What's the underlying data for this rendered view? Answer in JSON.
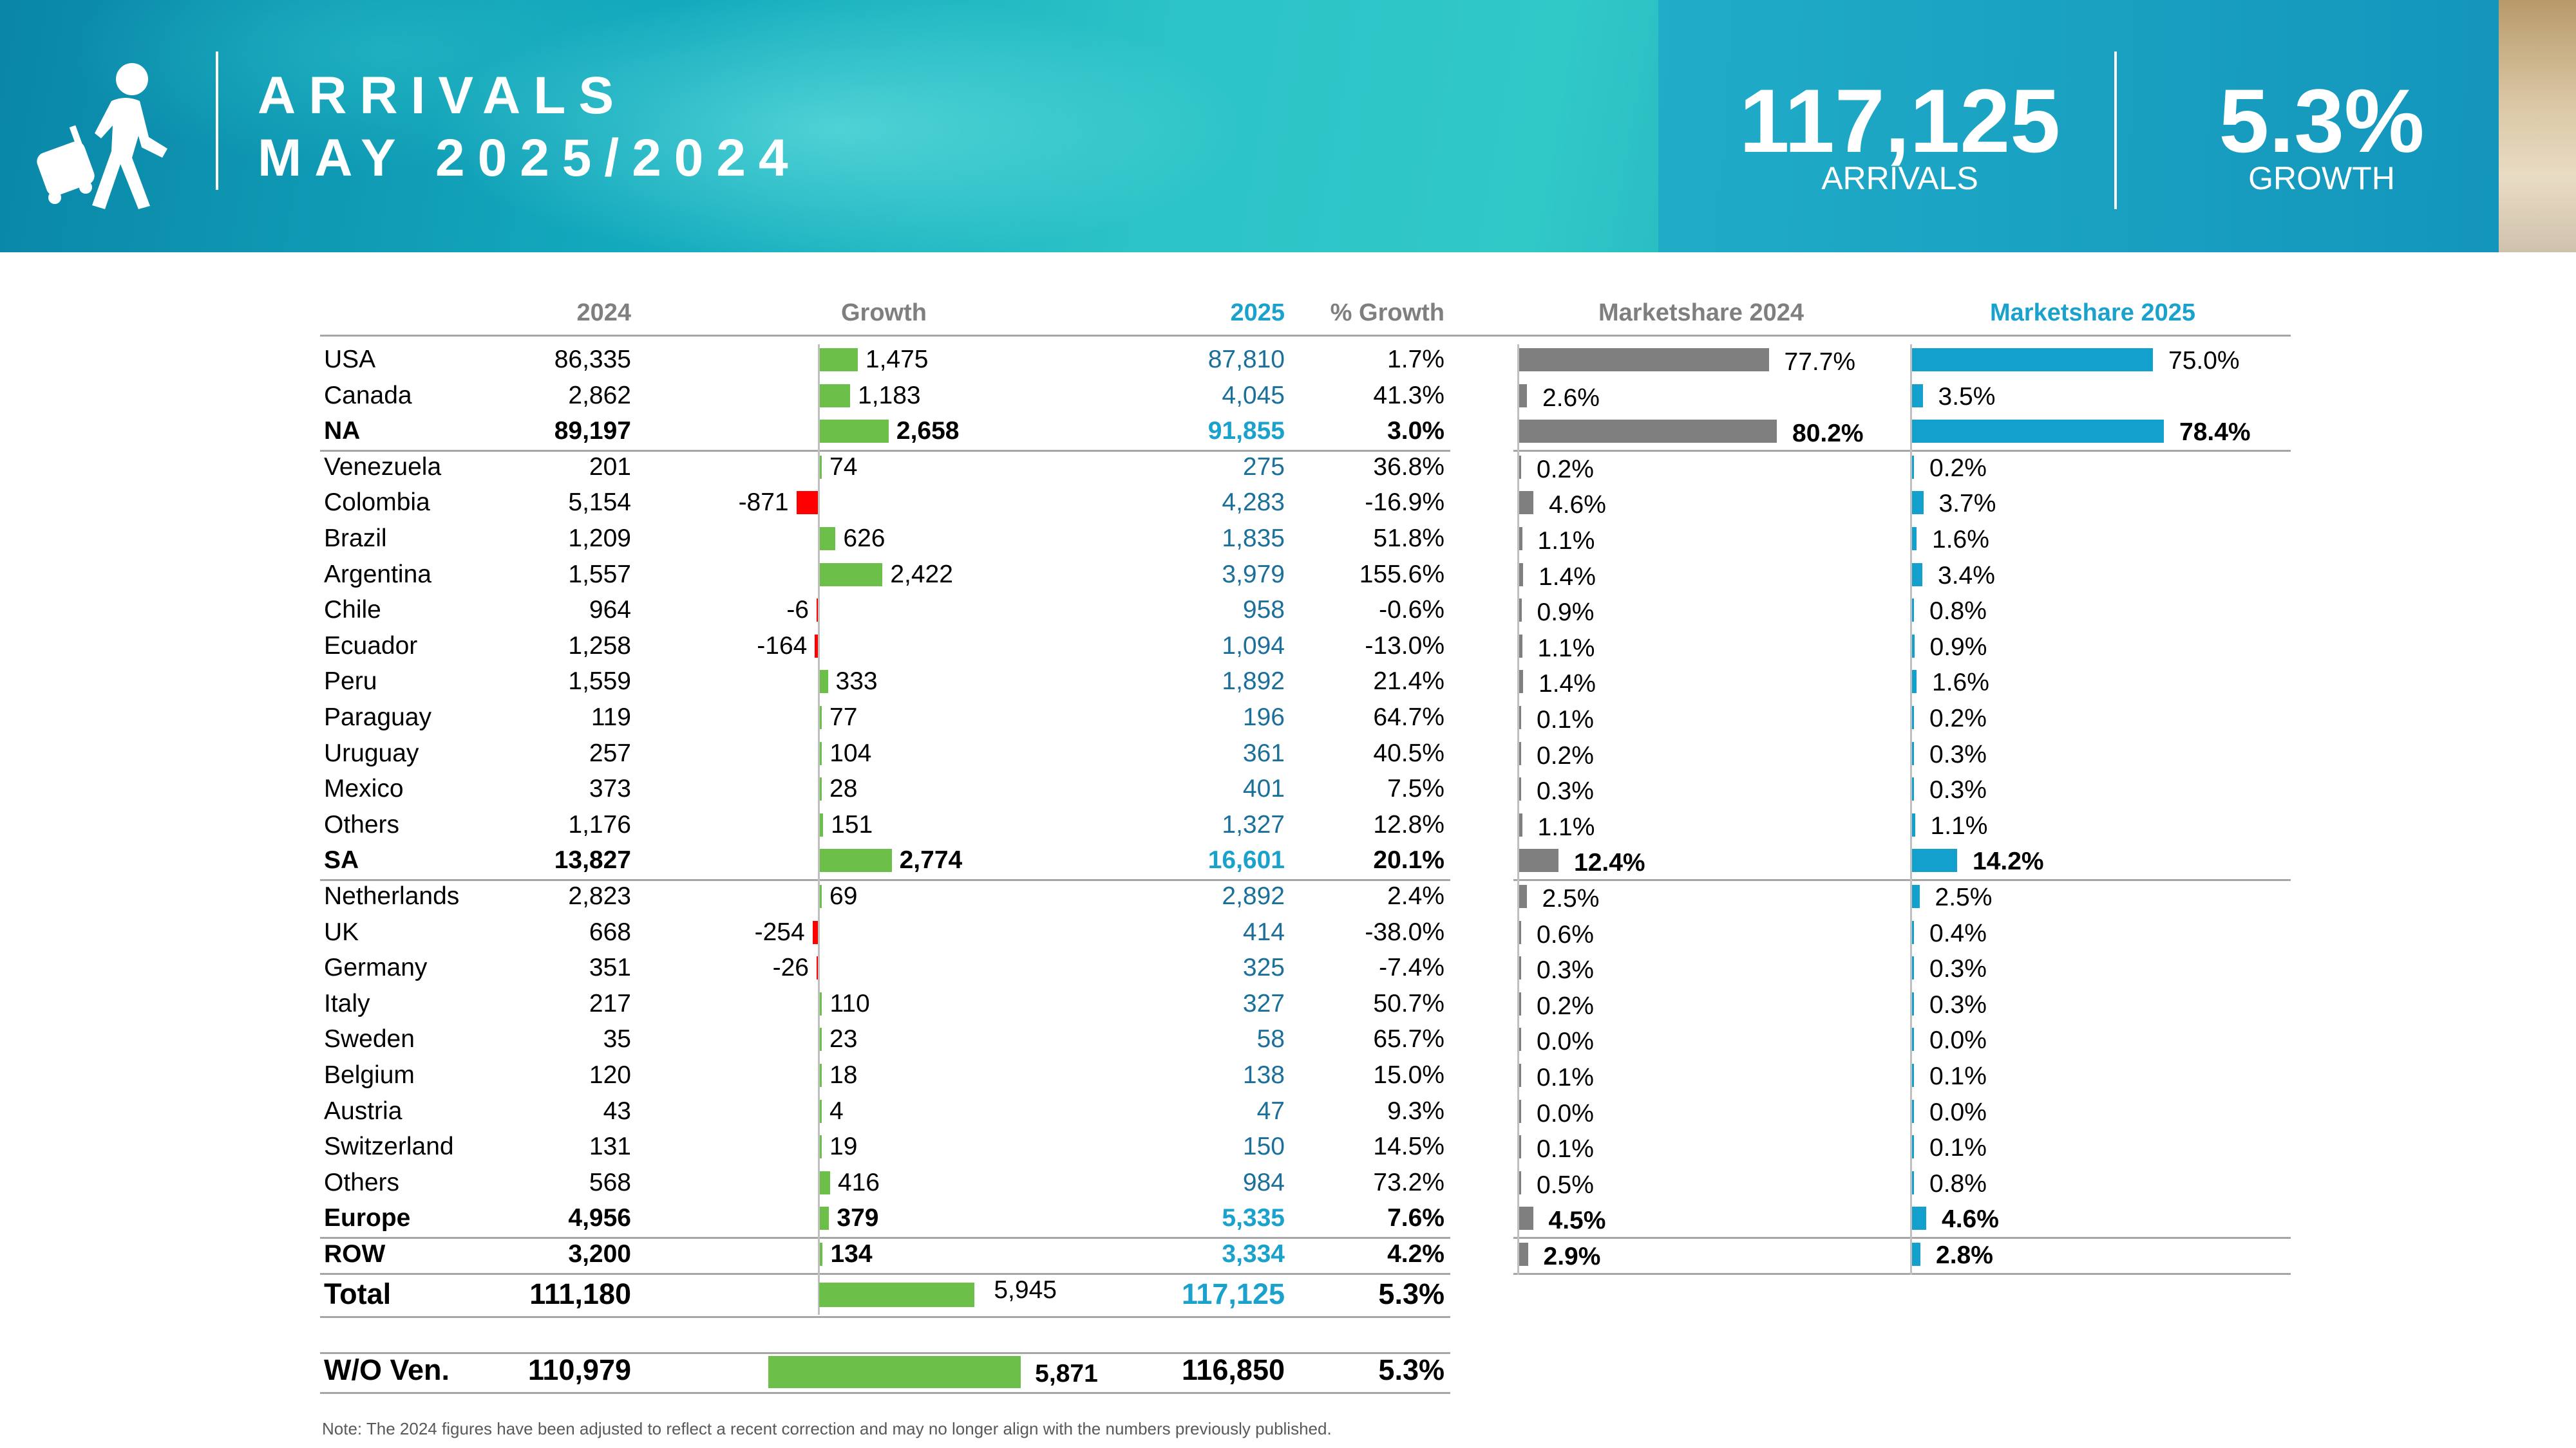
{
  "header": {
    "title_line1": "ARRIVALS",
    "title_line2": "MAY 2025/2024",
    "arrivals_value": "117,125",
    "arrivals_label": "ARRIVALS",
    "growth_value": "5.3%",
    "growth_label": "GROWTH",
    "icon": "traveler-with-luggage-icon"
  },
  "columns": {
    "y2024": "2024",
    "growth": "Growth",
    "y2025": "2025",
    "pct_growth": "% Growth",
    "share2024": "Marketshare 2024",
    "share2025": "Marketshare 2025"
  },
  "colors": {
    "growth_positive": "#6cc04a",
    "growth_negative": "#ff0000",
    "share_2024": "#7f7f7f",
    "share_2025": "#14a0cc",
    "banner": "#13a9bd"
  },
  "rows": [
    {
      "name": "USA",
      "y2024": "86,335",
      "growth": "1,475",
      "growth_value": 1475,
      "y2025": "87,810",
      "pct": "1.7%",
      "share2024": "77.7%",
      "share2024_value": 77.7,
      "share2025": "75.0%",
      "share2025_value": 75.0
    },
    {
      "name": "Canada",
      "y2024": "2,862",
      "growth": "1,183",
      "growth_value": 1183,
      "y2025": "4,045",
      "pct": "41.3%",
      "share2024": "2.6%",
      "share2024_value": 2.6,
      "share2025": "3.5%",
      "share2025_value": 3.5
    },
    {
      "name": "NA",
      "y2024": "89,197",
      "growth": "2,658",
      "growth_value": 2658,
      "y2025": "91,855",
      "pct": "3.0%",
      "share2024": "80.2%",
      "share2024_value": 80.2,
      "share2025": "78.4%",
      "share2025_value": 78.4,
      "subtotal": true
    },
    {
      "name": "Venezuela",
      "y2024": "201",
      "growth": "74",
      "growth_value": 74,
      "y2025": "275",
      "pct": "36.8%",
      "share2024": "0.2%",
      "share2024_value": 0.2,
      "share2025": "0.2%",
      "share2025_value": 0.2
    },
    {
      "name": "Colombia",
      "y2024": "5,154",
      "growth": "-871",
      "growth_value": -871,
      "y2025": "4,283",
      "pct": "-16.9%",
      "share2024": "4.6%",
      "share2024_value": 4.6,
      "share2025": "3.7%",
      "share2025_value": 3.7
    },
    {
      "name": "Brazil",
      "y2024": "1,209",
      "growth": "626",
      "growth_value": 626,
      "y2025": "1,835",
      "pct": "51.8%",
      "share2024": "1.1%",
      "share2024_value": 1.1,
      "share2025": "1.6%",
      "share2025_value": 1.6
    },
    {
      "name": "Argentina",
      "y2024": "1,557",
      "growth": "2,422",
      "growth_value": 2422,
      "y2025": "3,979",
      "pct": "155.6%",
      "share2024": "1.4%",
      "share2024_value": 1.4,
      "share2025": "3.4%",
      "share2025_value": 3.4
    },
    {
      "name": "Chile",
      "y2024": "964",
      "growth": "-6",
      "growth_value": -6,
      "y2025": "958",
      "pct": "-0.6%",
      "share2024": "0.9%",
      "share2024_value": 0.9,
      "share2025": "0.8%",
      "share2025_value": 0.8
    },
    {
      "name": "Ecuador",
      "y2024": "1,258",
      "growth": "-164",
      "growth_value": -164,
      "y2025": "1,094",
      "pct": "-13.0%",
      "share2024": "1.1%",
      "share2024_value": 1.1,
      "share2025": "0.9%",
      "share2025_value": 0.9
    },
    {
      "name": "Peru",
      "y2024": "1,559",
      "growth": "333",
      "growth_value": 333,
      "y2025": "1,892",
      "pct": "21.4%",
      "share2024": "1.4%",
      "share2024_value": 1.4,
      "share2025": "1.6%",
      "share2025_value": 1.6
    },
    {
      "name": "Paraguay",
      "y2024": "119",
      "growth": "77",
      "growth_value": 77,
      "y2025": "196",
      "pct": "64.7%",
      "share2024": "0.1%",
      "share2024_value": 0.1,
      "share2025": "0.2%",
      "share2025_value": 0.2
    },
    {
      "name": "Uruguay",
      "y2024": "257",
      "growth": "104",
      "growth_value": 104,
      "y2025": "361",
      "pct": "40.5%",
      "share2024": "0.2%",
      "share2024_value": 0.2,
      "share2025": "0.3%",
      "share2025_value": 0.3
    },
    {
      "name": "Mexico",
      "y2024": "373",
      "growth": "28",
      "growth_value": 28,
      "y2025": "401",
      "pct": "7.5%",
      "share2024": "0.3%",
      "share2024_value": 0.3,
      "share2025": "0.3%",
      "share2025_value": 0.3
    },
    {
      "name": "Others",
      "y2024": "1,176",
      "growth": "151",
      "growth_value": 151,
      "y2025": "1,327",
      "pct": "12.8%",
      "share2024": "1.1%",
      "share2024_value": 1.1,
      "share2025": "1.1%",
      "share2025_value": 1.1
    },
    {
      "name": "SA",
      "y2024": "13,827",
      "growth": "2,774",
      "growth_value": 2774,
      "y2025": "16,601",
      "pct": "20.1%",
      "share2024": "12.4%",
      "share2024_value": 12.4,
      "share2025": "14.2%",
      "share2025_value": 14.2,
      "subtotal": true
    },
    {
      "name": "Netherlands",
      "y2024": "2,823",
      "growth": "69",
      "growth_value": 69,
      "y2025": "2,892",
      "pct": "2.4%",
      "share2024": "2.5%",
      "share2024_value": 2.5,
      "share2025": "2.5%",
      "share2025_value": 2.5
    },
    {
      "name": "UK",
      "y2024": "668",
      "growth": "-254",
      "growth_value": -254,
      "y2025": "414",
      "pct": "-38.0%",
      "share2024": "0.6%",
      "share2024_value": 0.6,
      "share2025": "0.4%",
      "share2025_value": 0.4
    },
    {
      "name": "Germany",
      "y2024": "351",
      "growth": "-26",
      "growth_value": -26,
      "y2025": "325",
      "pct": "-7.4%",
      "share2024": "0.3%",
      "share2024_value": 0.3,
      "share2025": "0.3%",
      "share2025_value": 0.3
    },
    {
      "name": "Italy",
      "y2024": "217",
      "growth": "110",
      "growth_value": 110,
      "y2025": "327",
      "pct": "50.7%",
      "share2024": "0.2%",
      "share2024_value": 0.2,
      "share2025": "0.3%",
      "share2025_value": 0.3
    },
    {
      "name": "Sweden",
      "y2024": "35",
      "growth": "23",
      "growth_value": 23,
      "y2025": "58",
      "pct": "65.7%",
      "share2024": "0.0%",
      "share2024_value": 0.0,
      "share2025": "0.0%",
      "share2025_value": 0.0
    },
    {
      "name": "Belgium",
      "y2024": "120",
      "growth": "18",
      "growth_value": 18,
      "y2025": "138",
      "pct": "15.0%",
      "share2024": "0.1%",
      "share2024_value": 0.1,
      "share2025": "0.1%",
      "share2025_value": 0.1
    },
    {
      "name": "Austria",
      "y2024": "43",
      "growth": "4",
      "growth_value": 4,
      "y2025": "47",
      "pct": "9.3%",
      "share2024": "0.0%",
      "share2024_value": 0.0,
      "share2025": "0.0%",
      "share2025_value": 0.0
    },
    {
      "name": "Switzerland",
      "y2024": "131",
      "growth": "19",
      "growth_value": 19,
      "y2025": "150",
      "pct": "14.5%",
      "share2024": "0.1%",
      "share2024_value": 0.1,
      "share2025": "0.1%",
      "share2025_value": 0.1
    },
    {
      "name": "Others",
      "y2024": "568",
      "growth": "416",
      "growth_value": 416,
      "y2025": "984",
      "pct": "73.2%",
      "share2024": "0.5%",
      "share2024_value": 0.5,
      "share2025": "0.8%",
      "share2025_value": 0.8
    },
    {
      "name": "Europe",
      "y2024": "4,956",
      "growth": "379",
      "growth_value": 379,
      "y2025": "5,335",
      "pct": "7.6%",
      "share2024": "4.5%",
      "share2024_value": 4.5,
      "share2025": "4.6%",
      "share2025_value": 4.6,
      "subtotal": true
    },
    {
      "name": "ROW",
      "y2024": "3,200",
      "growth": "134",
      "growth_value": 134,
      "y2025": "3,334",
      "pct": "4.2%",
      "share2024": "2.9%",
      "share2024_value": 2.9,
      "share2025": "2.8%",
      "share2025_value": 2.8,
      "subtotal": true
    }
  ],
  "total": {
    "name": "Total",
    "y2024": "111,180",
    "growth": "5,945",
    "growth_value": 5945,
    "y2025": "117,125",
    "pct": "5.3%"
  },
  "without_venezuela": {
    "name": "W/O Ven.",
    "y2024": "110,979",
    "growth": "5,871",
    "growth_value": 5871,
    "y2025": "116,850",
    "pct": "5.3%"
  },
  "note": "Note: The 2024 figures have been adjusted to reflect a recent correction and may no longer align with the numbers previously published."
}
